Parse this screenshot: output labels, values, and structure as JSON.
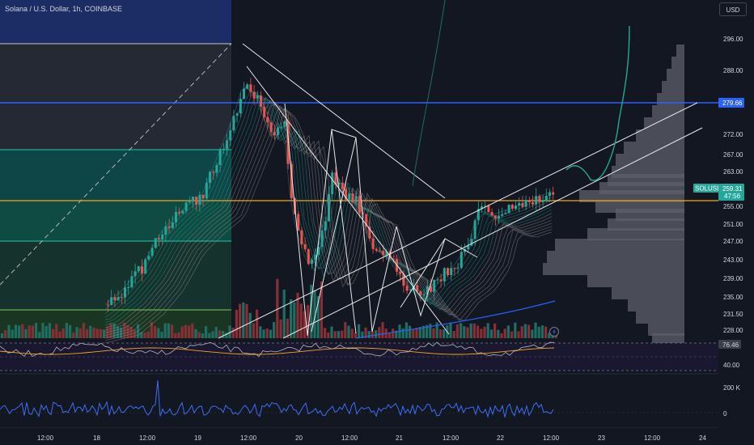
{
  "header": {
    "symbol_title": "Solana / U.S. Dollar, 1h, COINBASE",
    "currency_button": "USD"
  },
  "price_axis": {
    "labels": [
      "296.00",
      "288.00",
      "272.00",
      "267.00",
      "263.00",
      "255.00",
      "251.00",
      "247.00",
      "243.00",
      "239.00",
      "235.00",
      "231.50",
      "228.00"
    ]
  },
  "price_tags": {
    "level_price": "279.66",
    "symbol": "SOLUSD",
    "last_price": "259.31",
    "countdown": "47:56"
  },
  "oscillator_axis": {
    "value": "76.46",
    "level": "40.00"
  },
  "volume_axis": {
    "top": "200 K",
    "zero": "0"
  },
  "time_axis": {
    "labels": [
      "12:00",
      "18",
      "12:00",
      "19",
      "12:00",
      "20",
      "12:00",
      "21",
      "12:00",
      "22",
      "12:00",
      "23",
      "12:00",
      "24"
    ]
  },
  "colors": {
    "background": "#131722",
    "up": "#26a69a",
    "down": "#ef5350",
    "resistance_line": "#2962ff",
    "orange_line": "#f5a623",
    "volume_profile": "#5d606b",
    "teal_projection": "#22ab94",
    "blue_oscillator": "#2962ff"
  },
  "icons": {
    "lightning": "lightning-icon"
  }
}
